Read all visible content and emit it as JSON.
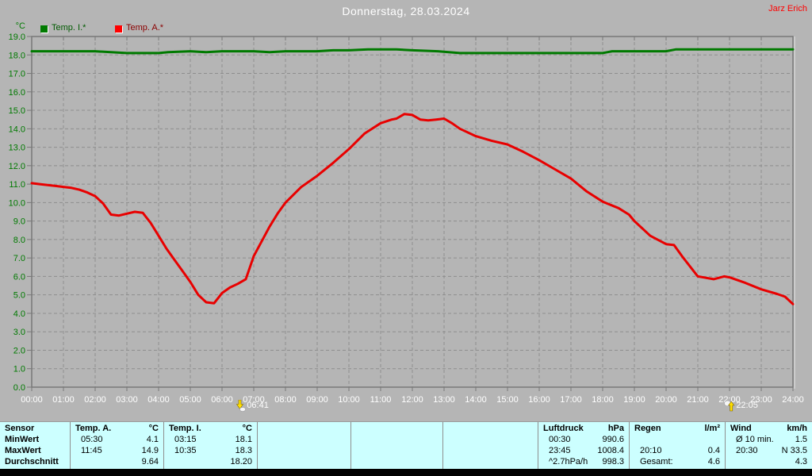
{
  "header": {
    "title": "Donnerstag, 28.03.2024",
    "watermark": "Jarz Erich"
  },
  "colors": {
    "background": "#b5b5b5",
    "temp_i_line": "#007a00",
    "temp_a_line": "#e80000",
    "y_axis_labels": "#007a00",
    "x_axis_labels": "#ffffff",
    "title_text": "#ffffff",
    "watermark_text": "#ff0000",
    "grid": "#8e8e8e",
    "plot_border": "#787878",
    "table_background": "#ccffff",
    "table_separator": "#8f8f8f",
    "legend_temp_i_text": "#005a00",
    "legend_temp_a_text": "#8b0000",
    "marker_yellow": "#ffe000"
  },
  "chart_data": {
    "type": "line",
    "title": "Donnerstag, 28.03.2024",
    "xlabel": "",
    "ylabel": "°C",
    "ylim": [
      0,
      19
    ],
    "xlim_hours": [
      0,
      24
    ],
    "grid": true,
    "legend_position": "top-left",
    "x_tick_labels": [
      "00:00",
      "01:00",
      "02:00",
      "03:00",
      "04:00",
      "05:00",
      "06:00",
      "07:00",
      "08:00",
      "09:00",
      "10:00",
      "11:00",
      "12:00",
      "13:00",
      "14:00",
      "15:00",
      "16:00",
      "17:00",
      "18:00",
      "19:00",
      "20:00",
      "21:00",
      "22:00",
      "23:00",
      "24:00"
    ],
    "y_tick_labels": [
      "0.0",
      "1.0",
      "2.0",
      "3.0",
      "4.0",
      "5.0",
      "6.0",
      "7.0",
      "8.0",
      "9.0",
      "10.0",
      "11.0",
      "12.0",
      "13.0",
      "14.0",
      "15.0",
      "16.0",
      "17.0",
      "18.0",
      "19.0"
    ],
    "series": [
      {
        "name": "Temp. I.*",
        "color": "#007a00",
        "points": [
          [
            0,
            18.2
          ],
          [
            1,
            18.2
          ],
          [
            2,
            18.2
          ],
          [
            2.5,
            18.15
          ],
          [
            3,
            18.1
          ],
          [
            3.5,
            18.1
          ],
          [
            4,
            18.1
          ],
          [
            4.3,
            18.15
          ],
          [
            5,
            18.2
          ],
          [
            5.5,
            18.15
          ],
          [
            6,
            18.2
          ],
          [
            7,
            18.2
          ],
          [
            7.5,
            18.15
          ],
          [
            8,
            18.2
          ],
          [
            9,
            18.2
          ],
          [
            9.5,
            18.25
          ],
          [
            10,
            18.25
          ],
          [
            10.6,
            18.3
          ],
          [
            11.5,
            18.3
          ],
          [
            12,
            18.25
          ],
          [
            12.8,
            18.2
          ],
          [
            13.5,
            18.1
          ],
          [
            14,
            18.1
          ],
          [
            15,
            18.1
          ],
          [
            16,
            18.1
          ],
          [
            17,
            18.1
          ],
          [
            18,
            18.1
          ],
          [
            18.3,
            18.2
          ],
          [
            19,
            18.2
          ],
          [
            20,
            18.2
          ],
          [
            20.3,
            18.3
          ],
          [
            21,
            18.3
          ],
          [
            22,
            18.3
          ],
          [
            23,
            18.3
          ],
          [
            24,
            18.3
          ]
        ]
      },
      {
        "name": "Temp. A.*",
        "color": "#e80000",
        "points": [
          [
            0,
            11.05
          ],
          [
            0.25,
            11.0
          ],
          [
            0.5,
            10.95
          ],
          [
            0.75,
            10.9
          ],
          [
            1,
            10.85
          ],
          [
            1.25,
            10.8
          ],
          [
            1.5,
            10.7
          ],
          [
            1.75,
            10.55
          ],
          [
            2,
            10.35
          ],
          [
            2.25,
            9.95
          ],
          [
            2.5,
            9.35
          ],
          [
            2.75,
            9.3
          ],
          [
            3,
            9.4
          ],
          [
            3.25,
            9.5
          ],
          [
            3.5,
            9.45
          ],
          [
            3.75,
            8.9
          ],
          [
            4,
            8.2
          ],
          [
            4.25,
            7.5
          ],
          [
            4.5,
            6.9
          ],
          [
            4.75,
            6.3
          ],
          [
            5,
            5.7
          ],
          [
            5.25,
            5.0
          ],
          [
            5.5,
            4.6
          ],
          [
            5.75,
            4.55
          ],
          [
            6,
            5.1
          ],
          [
            6.25,
            5.4
          ],
          [
            6.5,
            5.6
          ],
          [
            6.75,
            5.85
          ],
          [
            7,
            7.1
          ],
          [
            7.25,
            7.9
          ],
          [
            7.5,
            8.7
          ],
          [
            7.75,
            9.4
          ],
          [
            8,
            10.0
          ],
          [
            8.5,
            10.85
          ],
          [
            9,
            11.45
          ],
          [
            9.5,
            12.15
          ],
          [
            10,
            12.9
          ],
          [
            10.5,
            13.75
          ],
          [
            11,
            14.3
          ],
          [
            11.35,
            14.5
          ],
          [
            11.5,
            14.55
          ],
          [
            11.75,
            14.8
          ],
          [
            12,
            14.75
          ],
          [
            12.25,
            14.5
          ],
          [
            12.5,
            14.45
          ],
          [
            12.75,
            14.5
          ],
          [
            13,
            14.55
          ],
          [
            13.25,
            14.3
          ],
          [
            13.5,
            14.0
          ],
          [
            14,
            13.6
          ],
          [
            14.5,
            13.35
          ],
          [
            15,
            13.15
          ],
          [
            15.5,
            12.75
          ],
          [
            16,
            12.3
          ],
          [
            16.5,
            11.8
          ],
          [
            17,
            11.3
          ],
          [
            17.5,
            10.6
          ],
          [
            18,
            10.05
          ],
          [
            18.5,
            9.7
          ],
          [
            18.83,
            9.35
          ],
          [
            19,
            9.0
          ],
          [
            19.5,
            8.2
          ],
          [
            20,
            7.75
          ],
          [
            20.25,
            7.7
          ],
          [
            20.5,
            7.1
          ],
          [
            21,
            6.0
          ],
          [
            21.5,
            5.85
          ],
          [
            21.83,
            6.0
          ],
          [
            22,
            5.95
          ],
          [
            22.5,
            5.65
          ],
          [
            23,
            5.3
          ],
          [
            23.5,
            5.05
          ],
          [
            23.75,
            4.9
          ],
          [
            24,
            4.5
          ]
        ]
      }
    ],
    "markers": [
      {
        "label": "06:41",
        "hour": 6.683,
        "icon": "sunrise-icon"
      },
      {
        "label": "22:05",
        "hour": 22.083,
        "icon": "moonrise-icon"
      }
    ]
  },
  "summary_table": {
    "sections": [
      {
        "kind": "labels",
        "header": "Sensor",
        "rows": [
          "MinWert",
          "MaxWert",
          "Durchschnitt"
        ],
        "width": 89,
        "id": "sensor"
      },
      {
        "kind": "data",
        "header": "Temp. A.",
        "unit": "°C",
        "rows": [
          [
            "05:30",
            "4.1"
          ],
          [
            "11:45",
            "14.9"
          ],
          [
            "",
            "9.64"
          ]
        ],
        "width": 118,
        "id": "temp-a"
      },
      {
        "kind": "data",
        "header": "Temp. I.",
        "unit": "°C",
        "rows": [
          [
            "03:15",
            "18.1"
          ],
          [
            "10:35",
            "18.3"
          ],
          [
            "",
            "18.20"
          ]
        ],
        "width": 118,
        "id": "temp-i"
      },
      {
        "kind": "empty",
        "width": 118,
        "id": "empty-1"
      },
      {
        "kind": "empty",
        "width": 116,
        "id": "empty-2"
      },
      {
        "kind": "empty",
        "width": 120,
        "id": "empty-3"
      },
      {
        "kind": "data",
        "header": "Luftdruck",
        "unit": "hPa",
        "rows": [
          [
            "00:30",
            "990.6"
          ],
          [
            "23:45",
            "1008.4"
          ],
          [
            "^2.7hPa/h",
            "998.3"
          ]
        ],
        "width": 115,
        "id": "luftdruck"
      },
      {
        "kind": "data",
        "header": "Regen",
        "unit": "l/m²",
        "rows": [
          [
            "",
            ""
          ],
          [
            "20:10",
            "0.4"
          ],
          [
            "Gesamt:",
            "4.6"
          ]
        ],
        "width": 121,
        "id": "regen"
      },
      {
        "kind": "data",
        "header": "Wind",
        "unit": "km/h",
        "rows": [
          [
            "Ø 10 min.",
            "1.5"
          ],
          [
            "20:30",
            "N 33.5"
          ],
          [
            "",
            "4.3"
          ]
        ],
        "width": 109,
        "id": "wind"
      }
    ]
  }
}
